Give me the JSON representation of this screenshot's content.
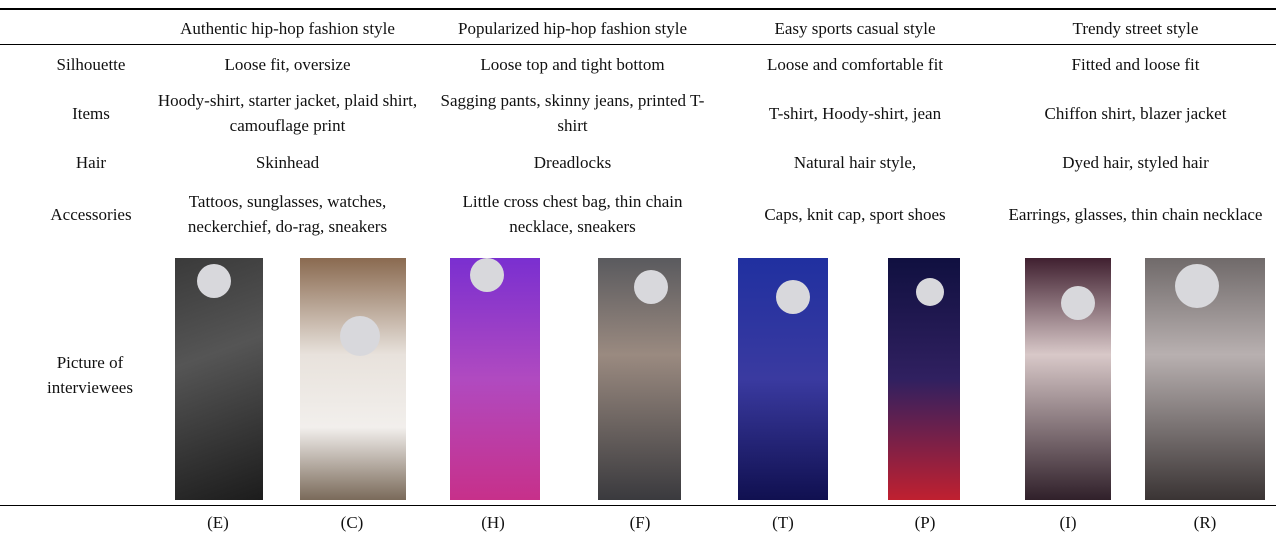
{
  "table": {
    "columns": [
      "Authentic hip-hop fashion style",
      "Popularized hip-hop fashion style",
      "Easy sports casual style",
      "Trendy street style"
    ],
    "rows": [
      {
        "label": "Silhouette",
        "cells": [
          "Loose fit, oversize",
          "Loose top and tight bottom",
          "Loose and comfortable fit",
          "Fitted and loose fit"
        ]
      },
      {
        "label": "Items",
        "cells": [
          "Hoody-shirt, starter jacket, plaid shirt, camouflage print",
          "Sagging pants, skinny jeans, printed T-shirt",
          "T-shirt, Hoody-shirt, jean",
          "Chiffon shirt, blazer jacket"
        ]
      },
      {
        "label": "Hair",
        "cells": [
          "Skinhead",
          "Dreadlocks",
          "Natural hair style,",
          "Dyed hair, styled hair"
        ]
      },
      {
        "label": "Accessories",
        "cells": [
          "Tattoos, sunglasses, watches, neckerchief, do-rag, sneakers",
          "Little cross chest bag, thin chain necklace, sneakers",
          "Caps, knit cap, sport shoes",
          "Earrings, glasses, thin chain necklace"
        ]
      }
    ],
    "picture_label": "Picture of interviewees",
    "picture_captions": [
      "(E)",
      "(C)",
      "(H)",
      "(F)",
      "(T)",
      "(P)",
      "(I)",
      "(R)"
    ]
  }
}
